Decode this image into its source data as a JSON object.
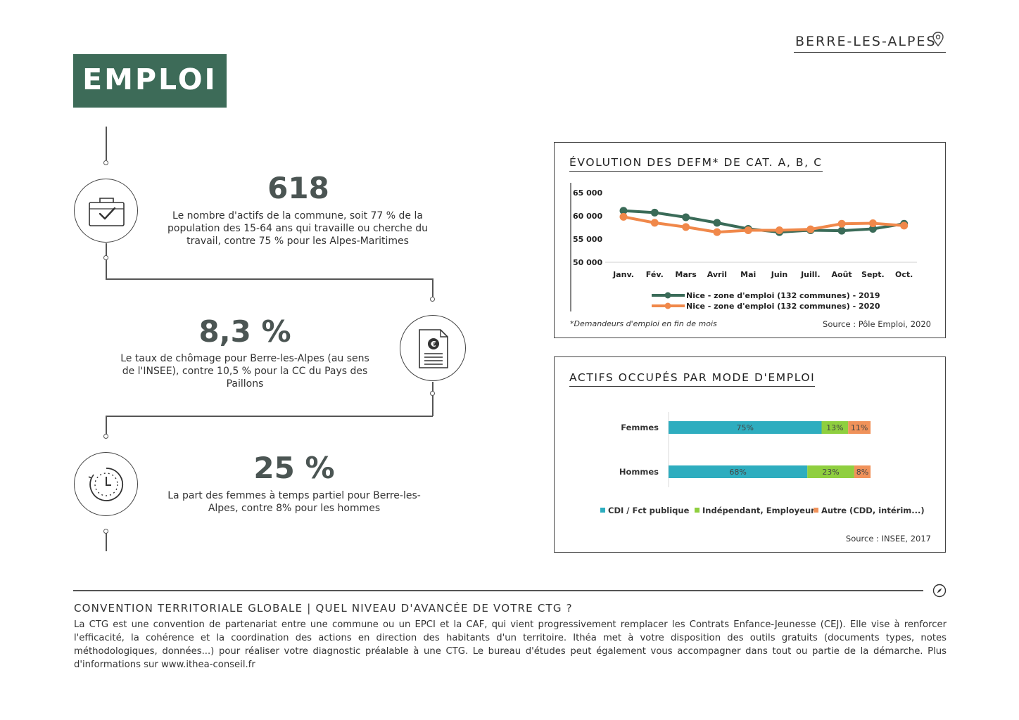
{
  "header": {
    "location": "BERRE-LES-ALPES",
    "title": "EMPLOI"
  },
  "stats": [
    {
      "value": "618",
      "description": "Le nombre d'actifs de la commune, soit 77 % de la population des 15-64 ans qui travaille ou cherche du travail, contre 75 % pour les Alpes-Maritimes"
    },
    {
      "value": "8,3 %",
      "description": "Le taux de chômage pour Berre-les-Alpes (au sens de l'INSEE), contre 10,5 % pour la CC du Pays des Paillons"
    },
    {
      "value": "25 %",
      "description": "La part des femmes à temps partiel pour Berre-les-Alpes, contre 8% pour les hommes"
    }
  ],
  "panels": {
    "defm": {
      "title": "ÉVOLUTION DES DEFM* DE CAT. A, B, C",
      "footnote": "*Demandeurs d'emploi en fin de mois",
      "source": "Source : Pôle Emploi, 2020"
    },
    "actifs": {
      "title": "ACTIFS OCCUPÉS PAR MODE D'EMPLOI",
      "source": "Source : INSEE, 2017"
    }
  },
  "chart_data": [
    {
      "type": "line",
      "x": [
        "Janv.",
        "Fév.",
        "Mars",
        "Avril",
        "Mai",
        "Juin",
        "Juill.",
        "Août",
        "Sept.",
        "Oct."
      ],
      "yticks": [
        "65 000",
        "60 000",
        "55 000",
        "50 000"
      ],
      "ylim": [
        50000,
        65000
      ],
      "legend": "bottom",
      "series": [
        {
          "name": "Nice - zone d'emploi (132 communes) - 2019",
          "color": "#3a6b58",
          "values": [
            61100,
            60700,
            59700,
            58500,
            57200,
            56500,
            56900,
            56800,
            57200,
            58300
          ]
        },
        {
          "name": "Nice - zone d'emploi (132 communes) - 2020",
          "color": "#f0884a",
          "values": [
            59800,
            58500,
            57600,
            56500,
            56900,
            56900,
            57100,
            58300,
            58400,
            57900
          ]
        }
      ]
    },
    {
      "type": "bar",
      "orientation": "horizontal",
      "stacked": true,
      "categories": [
        "Femmes",
        "Hommes"
      ],
      "legend": "bottom",
      "series": [
        {
          "name": "CDI / Fct publique",
          "color": "#2eadbf",
          "values": [
            75,
            68
          ],
          "labels": [
            "75%",
            "68%"
          ]
        },
        {
          "name": "Indépendant, Employeur",
          "color": "#8fcf3f",
          "values": [
            13,
            23
          ],
          "labels": [
            "13%",
            "23%"
          ]
        },
        {
          "name": "Autre (CDD, intérim...)",
          "color": "#f0925a",
          "values": [
            11,
            8
          ],
          "labels": [
            "11%",
            "8%"
          ]
        }
      ]
    }
  ],
  "footer": {
    "title": "CONVENTION TERRITORIALE GLOBALE | QUEL NIVEAU D'AVANCÉE DE VOTRE CTG ?",
    "text": "La CTG est une convention de partenariat entre une commune ou un EPCI et la CAF, qui vient progressivement remplacer les Contrats Enfance-Jeunesse (CEJ). Elle vise à renforcer l'efficacité, la cohérence et la coordination des actions en direction des habitants d'un territoire. Ithéa met à votre disposition des outils gratuits (documents types, notes méthodologiques, données...) pour réaliser votre diagnostic préalable à une CTG. Le bureau d'études peut également vous accompagner dans tout ou partie de la démarche. Plus d'informations sur www.ithea-conseil.fr"
  }
}
